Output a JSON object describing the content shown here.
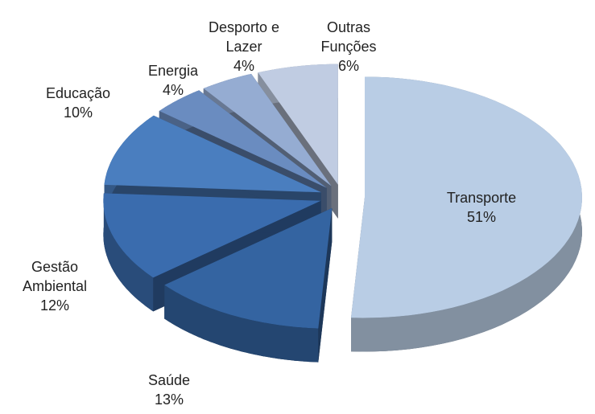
{
  "chart_data": {
    "type": "pie3d",
    "categories": [
      "Transporte",
      "Saúde",
      "Gestão Ambiental",
      "Educação",
      "Energia",
      "Desporto e Lazer",
      "Outras Funções"
    ],
    "values": [
      51,
      13,
      12,
      10,
      4,
      4,
      6
    ],
    "value_labels": [
      "51%",
      "13%",
      "12%",
      "10%",
      "4%",
      "4%",
      "6%"
    ],
    "colors": [
      "#b9cde5",
      "#3464a1",
      "#3a6cae",
      "#4a7ebf",
      "#6a8cc0",
      "#95acd2",
      "#c0cce2"
    ]
  }
}
